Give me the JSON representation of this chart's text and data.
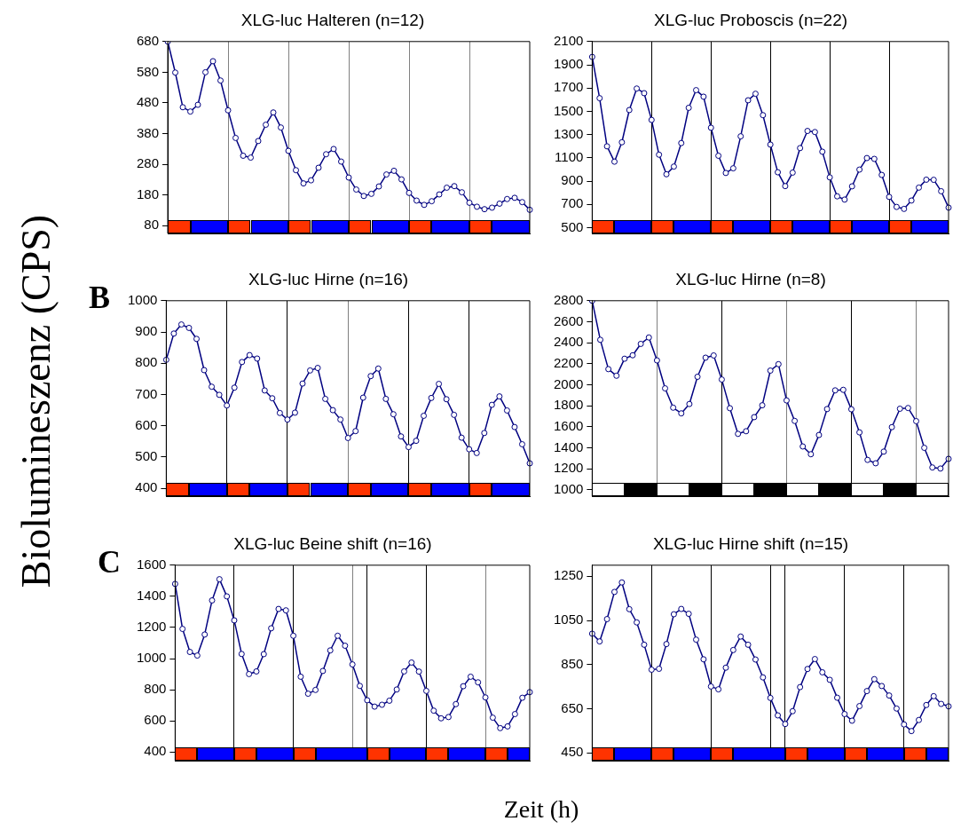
{
  "chart_data": [
    {
      "type": "line",
      "title": "XLG-luc Halteren (n=12)",
      "tick_labels": "y",
      "grid": false,
      "marker": "circle",
      "line_style": "solid",
      "ylim": [
        55,
        680
      ],
      "yticks": [
        80,
        180,
        280,
        380,
        480,
        580,
        680
      ],
      "categories": [
        null,
        null,
        null,
        null,
        null,
        null,
        null,
        null,
        null,
        null,
        null,
        null,
        null,
        null,
        null,
        null,
        null,
        null,
        null,
        null,
        null,
        null,
        null,
        null,
        null,
        null,
        null,
        null,
        null,
        null,
        null,
        null,
        null,
        null,
        null,
        null,
        null,
        null,
        null,
        null,
        null,
        null,
        null,
        null,
        null,
        null,
        null,
        null,
        null
      ],
      "series": [
        {
          "color": "#000080",
          "values": [
            680,
            579,
            466,
            452,
            474,
            580,
            616,
            553,
            456,
            366,
            308,
            302,
            356,
            409,
            449,
            400,
            324,
            261,
            218,
            228,
            269,
            313,
            330,
            289,
            237,
            198,
            177,
            184,
            208,
            247,
            259,
            231,
            187,
            162,
            148,
            160,
            182,
            204,
            209,
            189,
            155,
            142,
            134,
            139,
            152,
            167,
            171,
            157,
            132
          ]
        }
      ]
    },
    {
      "type": "line",
      "title": "XLG-luc Proboscis (n=22)",
      "tick_labels": "y",
      "grid": false,
      "marker": "circle",
      "line_style": "solid",
      "ylim": [
        450,
        2100
      ],
      "yticks": [
        500,
        700,
        900,
        1100,
        1300,
        1500,
        1700,
        1900,
        2100
      ],
      "categories": [
        null,
        null,
        null,
        null,
        null,
        null,
        null,
        null,
        null,
        null,
        null,
        null,
        null,
        null,
        null,
        null,
        null,
        null,
        null,
        null,
        null,
        null,
        null,
        null,
        null,
        null,
        null,
        null,
        null,
        null,
        null,
        null,
        null,
        null,
        null,
        null,
        null,
        null,
        null,
        null,
        null,
        null,
        null,
        null,
        null,
        null,
        null,
        null,
        null
      ],
      "series": [
        {
          "color": "#000080",
          "values": [
            1968,
            1613,
            1199,
            1067,
            1234,
            1511,
            1696,
            1656,
            1426,
            1127,
            959,
            1025,
            1227,
            1530,
            1682,
            1626,
            1359,
            1118,
            970,
            1010,
            1285,
            1595,
            1651,
            1467,
            1214,
            976,
            857,
            973,
            1184,
            1331,
            1322,
            1153,
            932,
            769,
            741,
            855,
            999,
            1098,
            1091,
            953,
            764,
            678,
            661,
            733,
            844,
            912,
            911,
            813,
            672
          ]
        }
      ]
    },
    {
      "type": "line",
      "title": "XLG-luc Hirne (n=16)",
      "ylabel": "Biolumineszenz (CPS)",
      "annotations": [
        "B"
      ],
      "tick_labels": "y",
      "grid": false,
      "marker": "circle",
      "line_style": "solid",
      "ylim": [
        375,
        1000
      ],
      "yticks": [
        400,
        500,
        600,
        700,
        800,
        900,
        1000
      ],
      "categories": [
        null,
        null,
        null,
        null,
        null,
        null,
        null,
        null,
        null,
        null,
        null,
        null,
        null,
        null,
        null,
        null,
        null,
        null,
        null,
        null,
        null,
        null,
        null,
        null,
        null,
        null,
        null,
        null,
        null,
        null,
        null,
        null,
        null,
        null,
        null,
        null,
        null,
        null,
        null,
        null,
        null,
        null,
        null,
        null,
        null,
        null,
        null,
        null,
        null
      ],
      "series": [
        {
          "color": "#000080",
          "values": [
            811,
            895,
            924,
            913,
            878,
            778,
            725,
            699,
            665,
            722,
            804,
            826,
            815,
            713,
            688,
            641,
            620,
            642,
            735,
            777,
            785,
            686,
            650,
            620,
            561,
            583,
            690,
            759,
            783,
            686,
            637,
            566,
            532,
            552,
            632,
            689,
            734,
            685,
            635,
            562,
            525,
            513,
            577,
            667,
            694,
            649,
            596,
            541,
            480
          ]
        }
      ]
    },
    {
      "type": "line",
      "title": "XLG-luc Hirne (n=8)",
      "tick_labels": "y",
      "grid": false,
      "marker": "circle",
      "line_style": "solid",
      "ylim": [
        940,
        2800
      ],
      "yticks": [
        1000,
        1200,
        1400,
        1600,
        1800,
        2000,
        2200,
        2400,
        2600,
        2800
      ],
      "categories": [
        null,
        null,
        null,
        null,
        null,
        null,
        null,
        null,
        null,
        null,
        null,
        null,
        null,
        null,
        null,
        null,
        null,
        null,
        null,
        null,
        null,
        null,
        null,
        null,
        null,
        null,
        null,
        null,
        null,
        null,
        null,
        null,
        null,
        null,
        null,
        null,
        null,
        null,
        null,
        null,
        null,
        null,
        null,
        null,
        null
      ],
      "series": [
        {
          "color": "#000080",
          "values": [
            2800,
            2428,
            2149,
            2086,
            2248,
            2281,
            2389,
            2450,
            2232,
            1966,
            1782,
            1728,
            1817,
            2076,
            2258,
            2279,
            2050,
            1777,
            1533,
            1558,
            1692,
            1805,
            2135,
            2196,
            1851,
            1656,
            1413,
            1339,
            1522,
            1769,
            1947,
            1952,
            1767,
            1547,
            1285,
            1253,
            1364,
            1597,
            1772,
            1779,
            1654,
            1400,
            1213,
            1203,
            1295
          ]
        }
      ]
    },
    {
      "type": "line",
      "title": "XLG-luc Beine shift (n=16)",
      "xlabel": "Zeit (h)",
      "annotations": [
        "C"
      ],
      "tick_labels": "y",
      "grid": false,
      "marker": "circle",
      "line_style": "solid",
      "ylim": [
        345,
        1600
      ],
      "yticks": [
        400,
        600,
        800,
        1000,
        1200,
        1400,
        1600
      ],
      "categories": [
        null,
        null,
        null,
        null,
        null,
        null,
        null,
        null,
        null,
        null,
        null,
        null,
        null,
        null,
        null,
        null,
        null,
        null,
        null,
        null,
        null,
        null,
        null,
        null,
        null,
        null,
        null,
        null,
        null,
        null,
        null,
        null,
        null,
        null,
        null,
        null,
        null,
        null,
        null,
        null,
        null,
        null,
        null,
        null,
        null,
        null,
        null,
        null,
        null
      ],
      "series": [
        {
          "color": "#000080",
          "values": [
            1480,
            1191,
            1043,
            1020,
            1155,
            1374,
            1510,
            1400,
            1246,
            1030,
            901,
            918,
            1029,
            1195,
            1319,
            1310,
            1147,
            884,
            775,
            799,
            921,
            1053,
            1147,
            1083,
            963,
            825,
            733,
            692,
            704,
            730,
            802,
            918,
            975,
            917,
            793,
            666,
            617,
            625,
            708,
            823,
            884,
            848,
            751,
            621,
            554,
            565,
            644,
            749,
            785
          ]
        }
      ]
    },
    {
      "type": "line",
      "title": "XLG-luc Hirne shift (n=15)",
      "tick_labels": "y",
      "grid": false,
      "marker": "circle",
      "line_style": "solid",
      "ylim": [
        415,
        1300
      ],
      "yticks": [
        450,
        650,
        850,
        1050,
        1250
      ],
      "categories": [
        null,
        null,
        null,
        null,
        null,
        null,
        null,
        null,
        null,
        null,
        null,
        null,
        null,
        null,
        null,
        null,
        null,
        null,
        null,
        null,
        null,
        null,
        null,
        null,
        null,
        null,
        null,
        null,
        null,
        null,
        null,
        null,
        null,
        null,
        null,
        null,
        null,
        null,
        null,
        null,
        null,
        null,
        null,
        null,
        null,
        null,
        null,
        null,
        null
      ],
      "series": [
        {
          "color": "#000080",
          "values": [
            990,
            955,
            1056,
            1179,
            1222,
            1101,
            1041,
            940,
            827,
            831,
            943,
            1078,
            1102,
            1080,
            963,
            874,
            751,
            738,
            836,
            916,
            977,
            940,
            873,
            792,
            699,
            620,
            581,
            639,
            748,
            830,
            875,
            815,
            781,
            700,
            626,
            596,
            662,
            730,
            784,
            753,
            710,
            651,
            579,
            549,
            599,
            667,
            707,
            672,
            661
          ]
        }
      ]
    }
  ]
}
